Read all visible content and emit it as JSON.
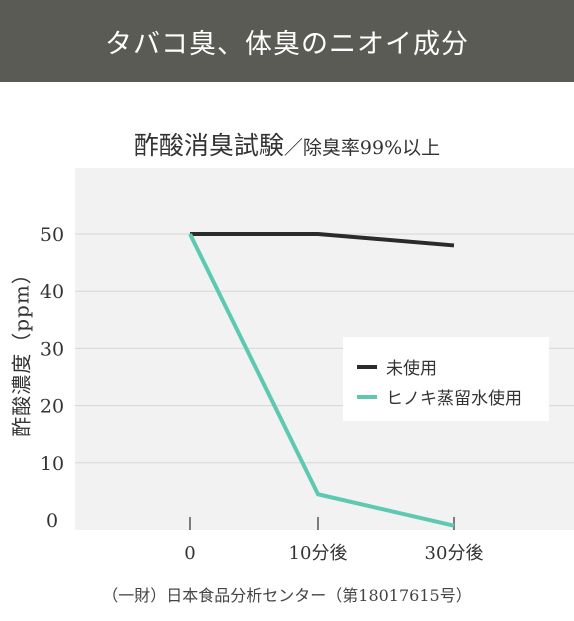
{
  "header": {
    "title": "タバコ臭、体臭のニオイ成分"
  },
  "chart_data": {
    "type": "line",
    "title": "酢酸消臭試験",
    "subtitle": "／除臭率99%以上",
    "ylabel": "酢酸濃度（ppm）",
    "xlabel": "",
    "categories": [
      "0",
      "10分後",
      "30分後"
    ],
    "yticks": [
      "50",
      "40",
      "30",
      "20",
      "10",
      "0"
    ],
    "ylim": [
      0,
      60
    ],
    "grid": true,
    "legend_position": "right",
    "series": [
      {
        "name": "未使用",
        "values": [
          50,
          50,
          48
        ],
        "color": "#2b2b2b"
      },
      {
        "name": "ヒノキ蒸留水使用",
        "values": [
          50,
          4.5,
          -1
        ],
        "color": "#5ec9b1"
      }
    ]
  },
  "footer": {
    "source": "（一財）日本食品分析センター（第18017615号）"
  }
}
